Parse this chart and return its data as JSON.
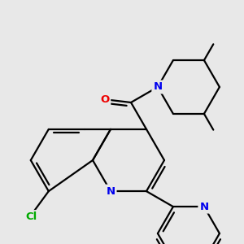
{
  "bg_color": "#e8e8e8",
  "bond_color": "#000000",
  "atom_colors": {
    "N": "#0000ee",
    "O": "#ee0000",
    "Cl": "#00aa00",
    "C": "#000000"
  },
  "bond_width": 1.6,
  "font_size_atom": 9.5,
  "fig_size": [
    3.0,
    3.0
  ],
  "dpi": 100
}
